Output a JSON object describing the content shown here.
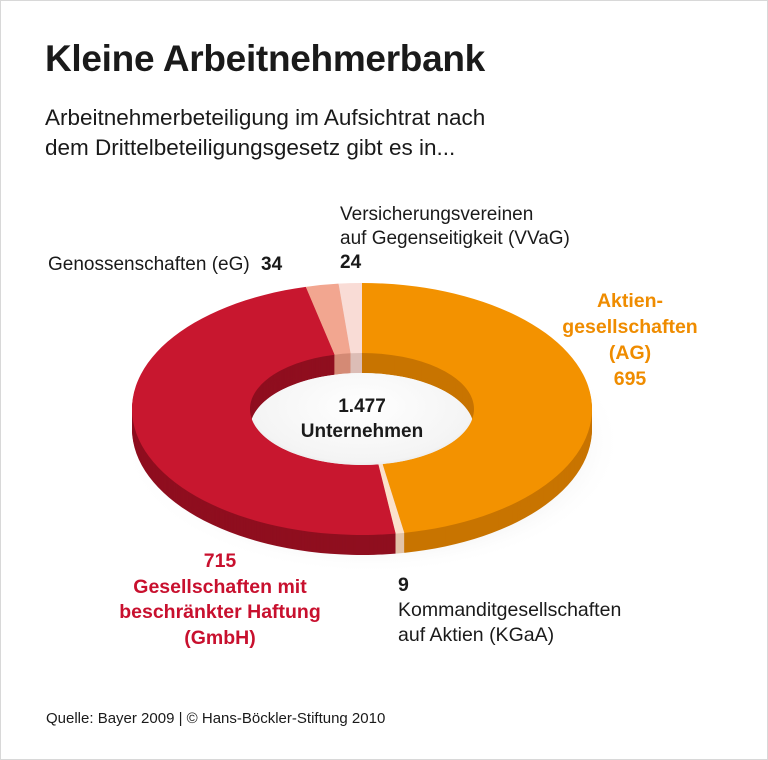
{
  "title": "Kleine Arbeitnehmerbank",
  "subtitle_line1": "Arbeitnehmerbeteiligung im Aufsichtrat nach",
  "subtitle_line2": "dem Drittelbeteiligungsgesetz gibt es in...",
  "source": "Quelle: Bayer 2009 | © Hans-Böckler-Stiftung 2010",
  "chart_data": {
    "type": "pie",
    "variant": "donut-3d",
    "title": "Kleine Arbeitnehmerbank",
    "center_value": "1.477",
    "center_label": "Unternehmen",
    "total": 1477,
    "slices": [
      {
        "key": "ag",
        "label_lines": [
          "Aktien-",
          "gesellschaften",
          "(AG)"
        ],
        "value": 695,
        "value_text": "695",
        "color": "#f39200",
        "side": "#c87400"
      },
      {
        "key": "kgaa",
        "label_lines": [
          "Kommanditgesellschaften",
          "auf Aktien (KGaA)"
        ],
        "value": 9,
        "value_text": "9",
        "color": "#fbe1cb",
        "side": "#e2c3a8"
      },
      {
        "key": "gmbh",
        "label_lines": [
          "Gesellschaften mit",
          "beschränkter Haftung",
          "(GmbH)"
        ],
        "value": 715,
        "value_text": "715",
        "color": "#c8172f",
        "side": "#8f0e1f"
      },
      {
        "key": "eg",
        "label_lines": [
          "Genossenschaften (eG)"
        ],
        "value": 34,
        "value_text": "34",
        "color": "#f2a690",
        "side": "#d48a75"
      },
      {
        "key": "vvag",
        "label_lines": [
          "Versicherungsvereinen",
          "auf Gegenseitigkeit (VVaG)"
        ],
        "value": 24,
        "value_text": "24",
        "color": "#f9dcd6",
        "side": "#dcbdb6"
      }
    ]
  }
}
